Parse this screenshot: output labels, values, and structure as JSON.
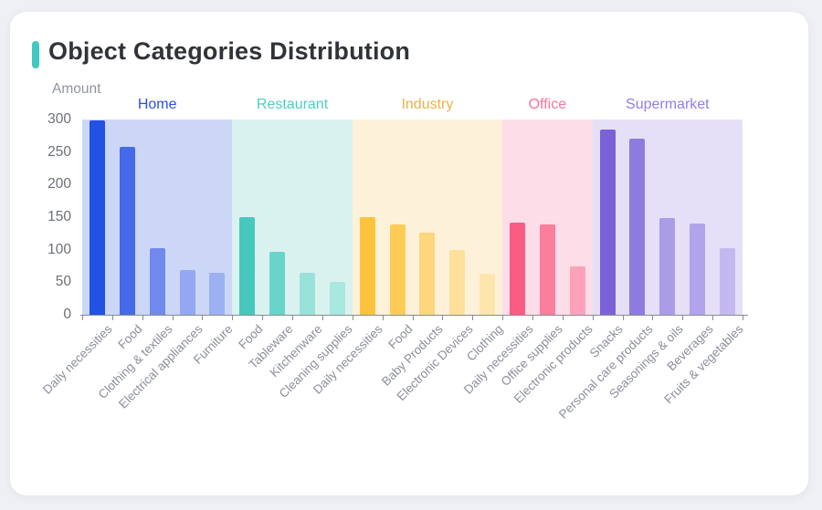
{
  "header": {
    "title": "Object Categories Distribution",
    "accent_color": "#41c8c2",
    "title_color": "#303439"
  },
  "chart_data": {
    "type": "bar",
    "title": "Object Categories Distribution",
    "ylabel": "Amount",
    "xlabel": "",
    "ylim": [
      0,
      300
    ],
    "y_ticks": [
      0,
      50,
      100,
      150,
      200,
      250,
      300
    ],
    "grid": false,
    "legend_position": "group labels above colored bands",
    "axis_color": "#878c94",
    "tick_label_color": "#6b7078",
    "x_label_color": "#8b8f9a",
    "x_label_rotation_deg": 45,
    "groups": [
      {
        "name": "Home",
        "label_color": "#2a4fe2",
        "band_color": "#ccd7f7",
        "bars": [
          {
            "label": "Daily necessities",
            "value": 298,
            "color": "#2151e5"
          },
          {
            "label": "Food",
            "value": 258,
            "color": "#4569e8"
          },
          {
            "label": "Clothing & textiles",
            "value": 103,
            "color": "#7189ed"
          },
          {
            "label": "Electrical appliances",
            "value": 69,
            "color": "#93a8f1"
          },
          {
            "label": "Furniture",
            "value": 64,
            "color": "#9db0f1"
          }
        ]
      },
      {
        "name": "Restaurant",
        "label_color": "#4ecdc2",
        "band_color": "#daf2ef",
        "bars": [
          {
            "label": "Food",
            "value": 150,
            "color": "#46c8bc"
          },
          {
            "label": "Tableware",
            "value": 97,
            "color": "#69d4c9"
          },
          {
            "label": "Kitchenware",
            "value": 65,
            "color": "#99e2da"
          },
          {
            "label": "Cleaning supplies",
            "value": 50,
            "color": "#a9e7e1"
          }
        ]
      },
      {
        "name": "Industry",
        "label_color": "#e9b24a",
        "band_color": "#fdf2d9",
        "bars": [
          {
            "label": "Daily necessities",
            "value": 150,
            "color": "#fec33d"
          },
          {
            "label": "Food",
            "value": 139,
            "color": "#fecb57"
          },
          {
            "label": "Baby Products",
            "value": 126,
            "color": "#fdd67e"
          },
          {
            "label": "Electronic Devices",
            "value": 99,
            "color": "#fee09c"
          },
          {
            "label": "Clothing",
            "value": 63,
            "color": "#fee5ab"
          }
        ]
      },
      {
        "name": "Office",
        "label_color": "#f97397",
        "band_color": "#fcdde8",
        "bars": [
          {
            "label": "Daily necessities",
            "value": 142,
            "color": "#fa5c84"
          },
          {
            "label": "Office supplies",
            "value": 139,
            "color": "#fb7e9c"
          },
          {
            "label": "Electronic products",
            "value": 75,
            "color": "#fda2ba"
          }
        ]
      },
      {
        "name": "Supermarket",
        "label_color": "#8f81e4",
        "band_color": "#e5e0f7",
        "bars": [
          {
            "label": "Snacks",
            "value": 285,
            "color": "#7b61d8"
          },
          {
            "label": "Personal care products",
            "value": 271,
            "color": "#8f7bdf"
          },
          {
            "label": "Seasonings & oils",
            "value": 148,
            "color": "#ab9ce8"
          },
          {
            "label": "Beverages",
            "value": 140,
            "color": "#b2a4ea"
          },
          {
            "label": "Fruits & vegetables",
            "value": 102,
            "color": "#c4b9ef"
          }
        ]
      }
    ]
  }
}
